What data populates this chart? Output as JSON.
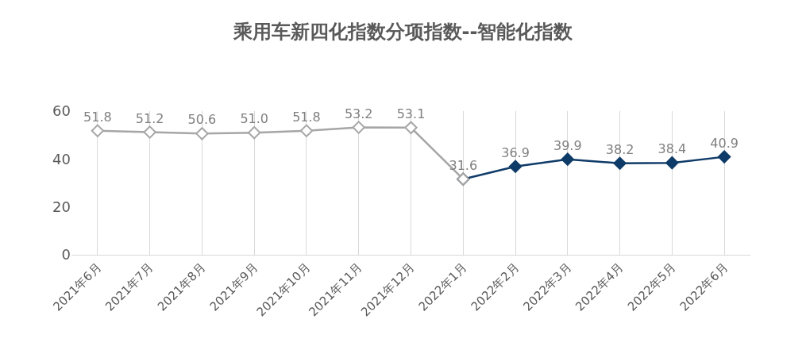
{
  "chart_data": {
    "type": "line",
    "title": "乘用车新四化指数分项指数--智能化指数",
    "categories": [
      "2021年6月",
      "2021年7月",
      "2021年8月",
      "2021年9月",
      "2021年10月",
      "2021年11月",
      "2021年12月",
      "2022年1月",
      "2022年2月",
      "2022年3月",
      "2022年4月",
      "2022年5月",
      "2022年6月"
    ],
    "series": [
      {
        "color": "#0f3b68",
        "marker": "diamond",
        "values": [
          null,
          null,
          null,
          null,
          null,
          null,
          null,
          31.6,
          36.9,
          39.9,
          38.2,
          38.4,
          40.9
        ],
        "value_labels": [
          null,
          null,
          null,
          null,
          null,
          null,
          null,
          null,
          "36.9",
          "39.9",
          "38.2",
          "38.4",
          "40.9"
        ]
      },
      {
        "color": "#a6a6a6",
        "marker": "diamond",
        "values": [
          51.8,
          51.2,
          50.6,
          51.0,
          51.8,
          53.2,
          53.1,
          31.6,
          null,
          null,
          null,
          null,
          null
        ],
        "value_labels": [
          "51.8",
          "51.2",
          "50.6",
          "51.0",
          "51.8",
          "53.2",
          "53.1",
          "31.6",
          null,
          null,
          null,
          null,
          null
        ]
      }
    ],
    "ylim": [
      0,
      60
    ],
    "yticks": [
      0,
      20,
      40,
      60
    ],
    "grid": "x",
    "legend": false
  }
}
